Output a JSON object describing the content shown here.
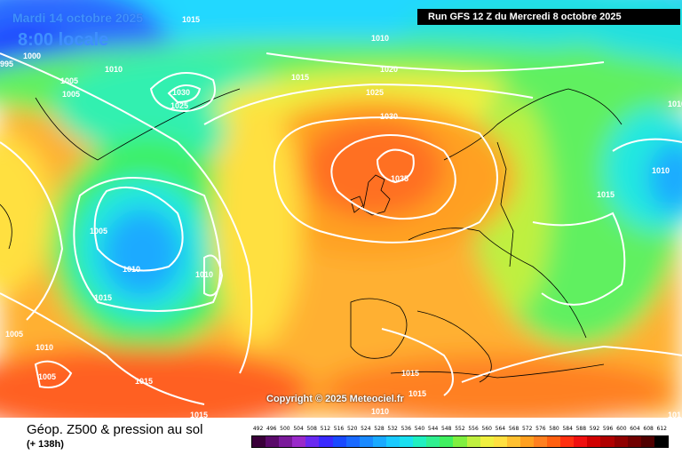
{
  "header": {
    "date": "Mardi 14 octobre 2025",
    "time": "8:00 locale",
    "run": "Run GFS 12 Z du Mercredi 8 octobre 2025"
  },
  "copyright": "Copyright © 2025 Meteociel.fr",
  "footer": {
    "title": "Géop. Z500 & pression au sol",
    "subtitle": "(+ 138h)"
  },
  "isobar_labels": [
    "995",
    "1000",
    "1005",
    "1005",
    "1010",
    "1015",
    "1010",
    "1030",
    "1025",
    "1015",
    "1020",
    "1025",
    "1030",
    "1035",
    "1005",
    "1010",
    "1015",
    "1010",
    "1005",
    "1010",
    "1005",
    "1015",
    "1015",
    "1015",
    "1010",
    "1015",
    "1010",
    "1015",
    "1010",
    "101"
  ],
  "scale": {
    "labels": [
      "492",
      "496",
      "500",
      "504",
      "508",
      "512",
      "516",
      "520",
      "524",
      "528",
      "532",
      "536",
      "540",
      "544",
      "548",
      "552",
      "556",
      "560",
      "564",
      "568",
      "572",
      "576",
      "580",
      "584",
      "588",
      "592",
      "596",
      "600",
      "604",
      "608",
      "612"
    ],
    "colors": [
      "#3a003a",
      "#5a0a6a",
      "#7a1a9a",
      "#9a2aca",
      "#6a2af0",
      "#3a2aff",
      "#1a4aff",
      "#1a6aff",
      "#1a8aff",
      "#1aaaff",
      "#1acaff",
      "#1ae0f0",
      "#20f0c0",
      "#30f090",
      "#40f060",
      "#80f040",
      "#c0f040",
      "#f0f040",
      "#ffe040",
      "#ffc030",
      "#ffa020",
      "#ff8020",
      "#ff6010",
      "#ff3010",
      "#f01010",
      "#d00000",
      "#b00000",
      "#900000",
      "#700000",
      "#500000",
      "#000000"
    ]
  }
}
